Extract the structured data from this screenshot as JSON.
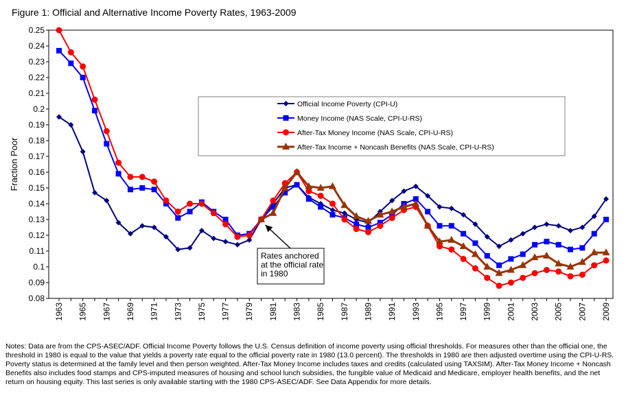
{
  "chart_data": {
    "type": "line",
    "title": "Figure 1: Official and Alternative Income Poverty Rates, 1963-2009",
    "xlabel": "",
    "ylabel": "Fraction Poor",
    "ylim": [
      0.08,
      0.25
    ],
    "y_ticks": [
      "0.08",
      "0.09",
      "0.1",
      "0.11",
      "0.12",
      "0.13",
      "0.14",
      "0.15",
      "0.16",
      "0.17",
      "0.18",
      "0.19",
      "0.2",
      "0.21",
      "0.22",
      "0.23",
      "0.24",
      "0.25"
    ],
    "x_range": [
      1963,
      2009
    ],
    "x_tick_labels": [
      "1963",
      "1965",
      "1967",
      "1969",
      "1971",
      "1973",
      "1975",
      "1977",
      "1979",
      "1981",
      "1983",
      "1985",
      "1987",
      "1989",
      "1991",
      "1993",
      "1995",
      "1997",
      "1999",
      "2001",
      "2003",
      "2005",
      "2007",
      "2009"
    ],
    "grid": false,
    "legend_position": "center-right",
    "series": [
      {
        "name": "Official Income Poverty (CPI-U)",
        "color": "#000080",
        "marker": "diamond",
        "x": [
          1963,
          1964,
          1965,
          1966,
          1967,
          1968,
          1969,
          1970,
          1971,
          1972,
          1973,
          1974,
          1975,
          1976,
          1977,
          1978,
          1979,
          1980,
          1981,
          1982,
          1983,
          1984,
          1985,
          1986,
          1987,
          1988,
          1989,
          1990,
          1991,
          1992,
          1993,
          1994,
          1995,
          1996,
          1997,
          1998,
          1999,
          2000,
          2001,
          2002,
          2003,
          2004,
          2005,
          2006,
          2007,
          2008,
          2009
        ],
        "values": [
          0.195,
          0.19,
          0.173,
          0.147,
          0.142,
          0.128,
          0.121,
          0.126,
          0.125,
          0.119,
          0.111,
          0.112,
          0.123,
          0.118,
          0.116,
          0.114,
          0.117,
          0.13,
          0.14,
          0.15,
          0.152,
          0.144,
          0.14,
          0.136,
          0.134,
          0.13,
          0.128,
          0.135,
          0.142,
          0.148,
          0.151,
          0.145,
          0.138,
          0.137,
          0.133,
          0.127,
          0.119,
          0.113,
          0.117,
          0.121,
          0.125,
          0.127,
          0.126,
          0.123,
          0.125,
          0.132,
          0.143
        ]
      },
      {
        "name": "Money Income (NAS Scale, CPI-U-RS)",
        "color": "#0000ff",
        "marker": "square",
        "x": [
          1963,
          1964,
          1965,
          1966,
          1967,
          1968,
          1969,
          1970,
          1971,
          1972,
          1973,
          1974,
          1975,
          1976,
          1977,
          1978,
          1979,
          1980,
          1981,
          1982,
          1983,
          1984,
          1985,
          1986,
          1987,
          1988,
          1989,
          1990,
          1991,
          1992,
          1993,
          1994,
          1995,
          1996,
          1997,
          1998,
          1999,
          2000,
          2001,
          2002,
          2003,
          2004,
          2005,
          2006,
          2007,
          2008,
          2009
        ],
        "values": [
          0.237,
          0.229,
          0.22,
          0.199,
          0.178,
          0.159,
          0.149,
          0.15,
          0.149,
          0.14,
          0.131,
          0.135,
          0.141,
          0.135,
          0.13,
          0.12,
          0.121,
          0.13,
          0.138,
          0.147,
          0.152,
          0.143,
          0.138,
          0.133,
          0.131,
          0.127,
          0.125,
          0.128,
          0.133,
          0.14,
          0.143,
          0.135,
          0.126,
          0.126,
          0.121,
          0.115,
          0.107,
          0.101,
          0.105,
          0.108,
          0.114,
          0.116,
          0.114,
          0.111,
          0.112,
          0.121,
          0.13
        ]
      },
      {
        "name": "After-Tax Money Income (NAS Scale, CPI-U-RS)",
        "color": "#ff0000",
        "marker": "circle",
        "x": [
          1963,
          1964,
          1965,
          1966,
          1967,
          1968,
          1969,
          1970,
          1971,
          1972,
          1973,
          1974,
          1975,
          1976,
          1977,
          1978,
          1979,
          1980,
          1981,
          1982,
          1983,
          1984,
          1985,
          1986,
          1987,
          1988,
          1989,
          1990,
          1991,
          1992,
          1993,
          1994,
          1995,
          1996,
          1997,
          1998,
          1999,
          2000,
          2001,
          2002,
          2003,
          2004,
          2005,
          2006,
          2007,
          2008,
          2009
        ],
        "values": [
          0.25,
          0.236,
          0.227,
          0.206,
          0.186,
          0.166,
          0.157,
          0.157,
          0.154,
          0.142,
          0.135,
          0.14,
          0.14,
          0.134,
          0.127,
          0.119,
          0.12,
          0.13,
          0.142,
          0.153,
          0.16,
          0.148,
          0.145,
          0.14,
          0.13,
          0.124,
          0.122,
          0.126,
          0.131,
          0.136,
          0.138,
          0.126,
          0.113,
          0.111,
          0.105,
          0.099,
          0.093,
          0.088,
          0.09,
          0.093,
          0.096,
          0.098,
          0.097,
          0.094,
          0.095,
          0.101,
          0.104
        ]
      },
      {
        "name": "After-Tax Income + Noncash Benefits (NAS Scale, CPI-U-RS)",
        "color": "#993300",
        "marker": "triangle",
        "x": [
          1980,
          1981,
          1982,
          1983,
          1984,
          1985,
          1986,
          1987,
          1988,
          1989,
          1990,
          1991,
          1992,
          1993,
          1994,
          1995,
          1996,
          1997,
          1998,
          1999,
          2000,
          2001,
          2002,
          2003,
          2004,
          2005,
          2006,
          2007,
          2008,
          2009
        ],
        "values": [
          0.13,
          0.134,
          0.15,
          0.16,
          0.151,
          0.15,
          0.151,
          0.139,
          0.132,
          0.129,
          0.133,
          0.135,
          0.138,
          0.14,
          0.126,
          0.116,
          0.117,
          0.113,
          0.108,
          0.1,
          0.096,
          0.098,
          0.101,
          0.106,
          0.107,
          0.102,
          0.1,
          0.103,
          0.109,
          0.109
        ]
      }
    ],
    "annotation": {
      "lines": [
        "Rates anchored",
        "at the official rate",
        "in 1980"
      ],
      "points_to_x": 1980,
      "points_to_y": 0.13
    }
  },
  "notes": "Notes:  Data are from the CPS-ASEC/ADF.  Official Income Poverty follows the U.S. Census definition of income poverty using official thresholds.  For measures other than the official one, the threshold in 1980 is equal to the value that yields a poverty rate equal to the official poverty rate in 1980 (13.0 percent).  The thresholds in 1980 are then adjusted overtime using the CPI-U-RS.  Poverty status is determined at the family level and then person weighted.  After-Tax Money Income includes taxes and credits (calculated using TAXSIM).  After-Tax Money Income + Noncash Benefits also includes food stamps and CPS-imputed measures of housing and school lunch subsidies, the fungible value of Medicaid and Medicare, employer health benefits, and the net return on housing equity.  This last series is only available starting with the 1980 CPS-ASEC/ADF. See Data Appendix for more details."
}
